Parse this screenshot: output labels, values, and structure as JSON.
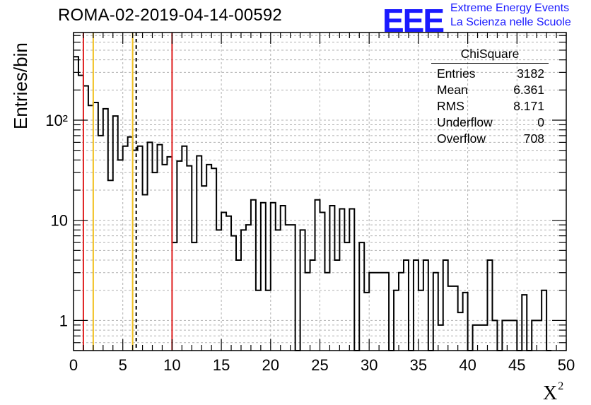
{
  "title": "ROMA-02-2019-04-14-00592",
  "logo": {
    "text": "EEE",
    "line1": "Extreme Energy Events",
    "line2": "La Scienza nelle Scuole",
    "color": "#1a1aff"
  },
  "stats_box": {
    "name": "ChiSquare",
    "rows": [
      {
        "label": "Entries",
        "value": "3182"
      },
      {
        "label": "Mean",
        "value": "6.361"
      },
      {
        "label": "RMS",
        "value": "8.171"
      },
      {
        "label": "Underflow",
        "value": "0"
      },
      {
        "label": "Overflow",
        "value": "708"
      }
    ]
  },
  "chart_data": {
    "type": "histogram",
    "xlabel": "X",
    "xlabel_sup": "2",
    "ylabel": "Entries/bin",
    "x_range": [
      0,
      50
    ],
    "y_range": [
      0.5,
      750
    ],
    "y_scale": "log",
    "grid": true,
    "bin_width": 0.5,
    "x_ticks": [
      0,
      5,
      10,
      15,
      20,
      25,
      30,
      35,
      40,
      45,
      50
    ],
    "y_tick_labels": [
      {
        "value": 1,
        "label": "1"
      },
      {
        "value": 10,
        "label": "10"
      },
      {
        "value": 100,
        "label": "10²"
      }
    ],
    "counts": [
      430,
      280,
      220,
      140,
      150,
      70,
      130,
      25,
      110,
      40,
      55,
      68,
      50,
      55,
      18,
      60,
      30,
      57,
      36,
      43,
      6,
      39,
      55,
      35,
      6,
      44,
      22,
      36,
      33,
      8,
      12,
      11,
      7,
      4,
      8,
      9,
      16,
      2,
      15,
      2,
      15,
      8,
      14,
      9,
      9,
      0,
      8,
      3,
      4,
      16,
      12,
      3,
      14,
      4,
      13,
      6,
      13,
      0,
      6,
      1.9,
      3,
      3,
      3,
      3,
      0,
      2,
      3,
      4,
      0,
      4,
      2,
      4,
      0,
      3,
      0.9,
      4,
      2.2,
      2.2,
      1.2,
      1.9,
      0,
      0.9,
      0.9,
      0.9,
      4,
      1,
      0,
      1,
      1,
      1,
      0,
      1.8,
      0,
      1,
      1,
      2,
      0
    ],
    "reference_lines": [
      {
        "x": 1.0,
        "color": "#e02020",
        "style": "solid"
      },
      {
        "x": 2.0,
        "color": "#f0c020",
        "style": "solid"
      },
      {
        "x": 6.0,
        "color": "#f0c020",
        "style": "solid"
      },
      {
        "x": 6.361,
        "color": "#000000",
        "style": "dashed"
      },
      {
        "x": 10.0,
        "color": "#e02020",
        "style": "solid"
      }
    ]
  }
}
